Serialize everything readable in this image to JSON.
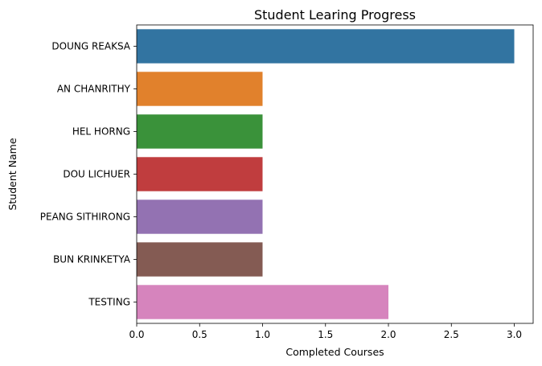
{
  "chart_data": {
    "type": "bar",
    "orientation": "horizontal",
    "title": "Student Learing Progress",
    "xlabel": "Completed Courses",
    "ylabel": "Student Name",
    "categories": [
      "DOUNG REAKSA",
      "AN CHANRITHY",
      "HEL HORNG",
      "DOU LICHUER",
      "PEANG SITHIRONG",
      "BUN KRINKETYA",
      "TESTING"
    ],
    "values": [
      3,
      1,
      1,
      1,
      1,
      1,
      2
    ],
    "colors": [
      "#3274a1",
      "#e1812c",
      "#3a923a",
      "#c03d3e",
      "#9372b2",
      "#845b53",
      "#d684bd"
    ],
    "xlim": [
      0,
      3.15
    ],
    "xticks": [
      0.0,
      0.5,
      1.0,
      1.5,
      2.0,
      2.5,
      3.0
    ],
    "xtick_labels": [
      "0.0",
      "0.5",
      "1.0",
      "1.5",
      "2.0",
      "2.5",
      "3.0"
    ],
    "grid": false,
    "legend": "none"
  }
}
